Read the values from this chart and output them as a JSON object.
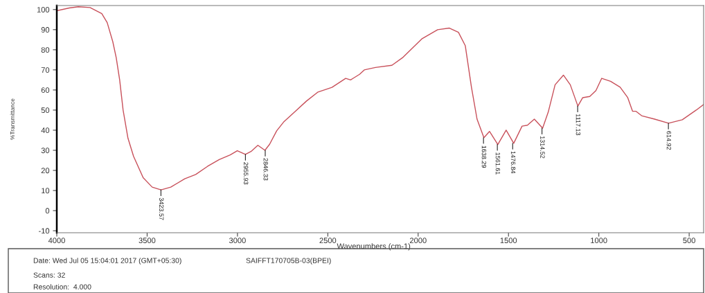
{
  "chart_data": {
    "type": "line",
    "xlabel": "Wavenumbers (cm-1)",
    "ylabel": "%Transmittance",
    "xlim": [
      4000,
      420
    ],
    "ylim": [
      -11,
      102
    ],
    "xticks": [
      4000,
      3500,
      3000,
      2500,
      2000,
      1500,
      1000,
      500
    ],
    "yticks": [
      -10,
      0,
      10,
      20,
      30,
      40,
      50,
      60,
      70,
      80,
      90,
      100
    ],
    "grid": false,
    "series": [
      {
        "color": "#c8505a",
        "x": [
          4000,
          3931,
          3881,
          3816,
          3751,
          3721,
          3690,
          3671,
          3652,
          3633,
          3606,
          3575,
          3522,
          3472,
          3423,
          3369,
          3292,
          3231,
          3166,
          3101,
          3040,
          3001,
          2956,
          2925,
          2887,
          2848,
          2822,
          2783,
          2745,
          2681,
          2618,
          2554,
          2477,
          2401,
          2374,
          2324,
          2298,
          2236,
          2145,
          2083,
          1980,
          1892,
          1827,
          1777,
          1739,
          1705,
          1674,
          1636,
          1605,
          1559,
          1513,
          1471,
          1425,
          1395,
          1357,
          1311,
          1280,
          1242,
          1196,
          1158,
          1116,
          1089,
          1050,
          1016,
          984,
          935,
          882,
          840,
          813,
          794,
          763,
          691,
          614,
          538,
          461,
          420
        ],
        "values": [
          99.4,
          100.8,
          101.4,
          101,
          98,
          93.5,
          84,
          76,
          65,
          50,
          36,
          27,
          16.4,
          11.7,
          10.3,
          11.7,
          15.8,
          18,
          22,
          25.4,
          27.7,
          29.8,
          28,
          29.4,
          32.5,
          30,
          33,
          39.7,
          44,
          49.3,
          54.5,
          59,
          61.3,
          65.8,
          65,
          67.8,
          70,
          71.2,
          72.3,
          76.3,
          85.4,
          90,
          90.8,
          88.7,
          82,
          61.4,
          45.5,
          36.3,
          39.4,
          32.9,
          40,
          33.5,
          42,
          42.5,
          45.5,
          41,
          49,
          62.6,
          67.4,
          62.6,
          52,
          56.2,
          56.8,
          59.7,
          65.8,
          64.3,
          61.4,
          56.2,
          49.4,
          49.4,
          47.2,
          45.5,
          43.5,
          45.2,
          50,
          52.8
        ]
      }
    ],
    "annotations": [
      {
        "text": "3423.57",
        "x": 3423.57,
        "y": 10.3
      },
      {
        "text": "2955.93",
        "x": 2955.93,
        "y": 28
      },
      {
        "text": "2846.33",
        "x": 2846.33,
        "y": 30
      },
      {
        "text": "1638.29",
        "x": 1638.29,
        "y": 36.3
      },
      {
        "text": "1561.61",
        "x": 1561.61,
        "y": 32.9
      },
      {
        "text": "1476.84",
        "x": 1476.84,
        "y": 33.5
      },
      {
        "text": "1314.52",
        "x": 1314.52,
        "y": 41
      },
      {
        "text": "1117.13",
        "x": 1117.13,
        "y": 52
      },
      {
        "text": "614.92",
        "x": 614.92,
        "y": 43.5
      },
      "Date: Wed Jul 05 15:04:01 2017 (GMT+05:30)",
      "SAIFFT170705B-03(BPEI)",
      "Scans: 32",
      "Resolution:  4.000"
    ]
  }
}
